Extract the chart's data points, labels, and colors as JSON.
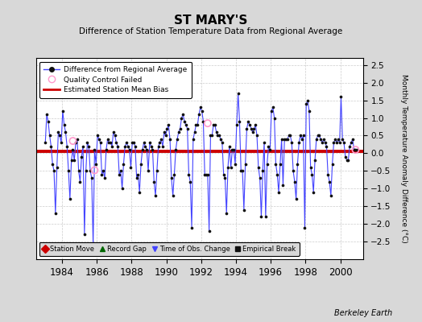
{
  "title": "ST MARY'S",
  "subtitle": "Difference of Station Temperature Data from Regional Average",
  "ylabel": "Monthly Temperature Anomaly Difference (°C)",
  "xlabel_years": [
    1984,
    1986,
    1988,
    1990,
    1992,
    1994,
    1996,
    1998,
    2000
  ],
  "xlim": [
    1982.5,
    2001.3
  ],
  "ylim": [
    -3.0,
    2.7
  ],
  "yticks": [
    -2.5,
    -2,
    -1.5,
    -1,
    -0.5,
    0,
    0.5,
    1,
    1.5,
    2,
    2.5
  ],
  "bias_line_y": 0.05,
  "bias_line_color": "#cc0000",
  "line_color": "#4444ff",
  "dot_color": "#111111",
  "qc_fail_color": "#ff99cc",
  "background_color": "#d8d8d8",
  "plot_bg_color": "#ffffff",
  "grid_color": "#cccccc",
  "footer_text": "Berkeley Earth",
  "legend1_labels": [
    "Difference from Regional Average",
    "Quality Control Failed",
    "Estimated Station Mean Bias"
  ],
  "legend2_labels": [
    "Station Move",
    "Record Gap",
    "Time of Obs. Change",
    "Empirical Break"
  ],
  "legend2_colors": [
    "#cc0000",
    "#006600",
    "#4444ff",
    "#111111"
  ],
  "legend2_markers": [
    "D",
    "^",
    "v",
    "s"
  ],
  "time_series": [
    1983.042,
    1983.125,
    1983.208,
    1983.292,
    1983.375,
    1983.458,
    1983.542,
    1983.625,
    1983.708,
    1983.792,
    1983.875,
    1983.958,
    1984.042,
    1984.125,
    1984.208,
    1984.292,
    1984.375,
    1984.458,
    1984.542,
    1984.625,
    1984.708,
    1984.792,
    1984.875,
    1984.958,
    1985.042,
    1985.125,
    1985.208,
    1985.292,
    1985.375,
    1985.458,
    1985.542,
    1985.625,
    1985.708,
    1985.792,
    1985.875,
    1985.958,
    1986.042,
    1986.125,
    1986.208,
    1986.292,
    1986.375,
    1986.458,
    1986.542,
    1986.625,
    1986.708,
    1986.792,
    1986.875,
    1986.958,
    1987.042,
    1987.125,
    1987.208,
    1987.292,
    1987.375,
    1987.458,
    1987.542,
    1987.625,
    1987.708,
    1987.792,
    1987.875,
    1987.958,
    1988.042,
    1988.125,
    1988.208,
    1988.292,
    1988.375,
    1988.458,
    1988.542,
    1988.625,
    1988.708,
    1988.792,
    1988.875,
    1988.958,
    1989.042,
    1989.125,
    1989.208,
    1989.292,
    1989.375,
    1989.458,
    1989.542,
    1989.625,
    1989.708,
    1989.792,
    1989.875,
    1989.958,
    1990.042,
    1990.125,
    1990.208,
    1990.292,
    1990.375,
    1990.458,
    1990.542,
    1990.625,
    1990.708,
    1990.792,
    1990.875,
    1990.958,
    1991.042,
    1991.125,
    1991.208,
    1991.292,
    1991.375,
    1991.458,
    1991.542,
    1991.625,
    1991.708,
    1991.792,
    1991.875,
    1991.958,
    1992.042,
    1992.125,
    1992.208,
    1992.292,
    1992.375,
    1992.458,
    1992.542,
    1992.625,
    1992.708,
    1992.792,
    1992.875,
    1992.958,
    1993.042,
    1993.125,
    1993.208,
    1993.292,
    1993.375,
    1993.458,
    1993.542,
    1993.625,
    1993.708,
    1993.792,
    1993.875,
    1993.958,
    1994.042,
    1994.125,
    1994.208,
    1994.292,
    1994.375,
    1994.458,
    1994.542,
    1994.625,
    1994.708,
    1994.792,
    1994.875,
    1994.958,
    1995.042,
    1995.125,
    1995.208,
    1995.292,
    1995.375,
    1995.458,
    1995.542,
    1995.625,
    1995.708,
    1995.792,
    1995.875,
    1995.958,
    1996.042,
    1996.125,
    1996.208,
    1996.292,
    1996.375,
    1996.458,
    1996.542,
    1996.625,
    1996.708,
    1996.792,
    1996.875,
    1996.958,
    1997.042,
    1997.125,
    1997.208,
    1997.292,
    1997.375,
    1997.458,
    1997.542,
    1997.625,
    1997.708,
    1997.792,
    1997.875,
    1997.958,
    1998.042,
    1998.125,
    1998.208,
    1998.292,
    1998.375,
    1998.458,
    1998.542,
    1998.625,
    1998.708,
    1998.792,
    1998.875,
    1998.958,
    1999.042,
    1999.125,
    1999.208,
    1999.292,
    1999.375,
    1999.458,
    1999.542,
    1999.625,
    1999.708,
    1999.792,
    1999.875,
    1999.958,
    2000.042,
    2000.125,
    2000.208,
    2000.292,
    2000.375,
    2000.458,
    2000.542,
    2000.625,
    2000.708,
    2000.792,
    2000.875,
    2000.958
  ],
  "values": [
    0.3,
    1.1,
    0.9,
    0.5,
    0.2,
    -0.3,
    -0.5,
    -1.7,
    -0.4,
    0.6,
    0.5,
    0.3,
    1.2,
    0.8,
    0.6,
    0.2,
    -0.5,
    -1.3,
    -0.2,
    0.1,
    -0.2,
    0.3,
    0.4,
    -0.5,
    -0.8,
    -0.1,
    0.2,
    -2.3,
    -0.5,
    0.3,
    0.2,
    -0.5,
    -0.7,
    -2.6,
    0.1,
    -0.3,
    0.5,
    0.4,
    0.3,
    -0.6,
    -0.5,
    -0.7,
    0.1,
    0.4,
    0.3,
    0.3,
    0.2,
    0.6,
    0.5,
    0.3,
    0.2,
    -0.6,
    -0.5,
    -1.0,
    -0.3,
    0.2,
    0.3,
    0.2,
    0.1,
    -0.4,
    0.3,
    0.3,
    0.2,
    -0.7,
    -0.6,
    -1.1,
    -0.3,
    0.1,
    0.3,
    0.2,
    0.1,
    -0.5,
    0.3,
    0.2,
    0.1,
    -0.8,
    -1.2,
    -0.5,
    0.2,
    0.3,
    0.4,
    0.2,
    0.6,
    0.5,
    0.7,
    0.8,
    0.4,
    -0.7,
    -1.2,
    -0.6,
    0.1,
    0.4,
    0.6,
    0.7,
    1.0,
    1.1,
    0.9,
    0.8,
    0.7,
    -0.6,
    -0.8,
    -2.1,
    0.4,
    0.6,
    0.8,
    0.8,
    1.1,
    1.3,
    1.2,
    0.9,
    -0.6,
    -0.6,
    -0.6,
    -2.2,
    0.5,
    0.5,
    0.8,
    0.8,
    0.6,
    0.5,
    0.5,
    0.4,
    0.3,
    -0.6,
    -0.7,
    -1.7,
    -0.4,
    0.2,
    -0.4,
    0.1,
    0.1,
    -0.3,
    0.8,
    1.7,
    0.9,
    -0.5,
    -0.5,
    -1.6,
    -0.3,
    0.7,
    0.9,
    0.8,
    0.7,
    0.6,
    0.7,
    0.8,
    0.5,
    -0.4,
    -0.7,
    -1.8,
    -0.5,
    0.3,
    -1.8,
    -0.3,
    0.2,
    0.1,
    1.2,
    1.3,
    1.0,
    -0.3,
    -0.6,
    -1.1,
    -0.3,
    0.4,
    -0.9,
    0.4,
    0.4,
    0.4,
    0.5,
    0.5,
    0.3,
    -0.5,
    -0.8,
    -1.3,
    -0.3,
    0.3,
    0.5,
    0.4,
    0.5,
    -2.1,
    1.4,
    1.5,
    1.2,
    -0.4,
    -0.6,
    -1.1,
    -0.2,
    0.4,
    0.5,
    0.5,
    0.4,
    0.3,
    0.4,
    0.3,
    0.2,
    -0.6,
    -0.8,
    -1.2,
    -0.3,
    0.3,
    0.4,
    0.3,
    0.4,
    0.3,
    1.6,
    0.4,
    0.3,
    -0.1,
    -0.2,
    -0.2,
    0.2,
    0.3,
    0.4,
    0.1,
    0.1,
    0.1
  ],
  "qc_fail_times": [
    1984.625,
    1985.875,
    1992.375,
    2000.875
  ],
  "qc_fail_values": [
    0.35,
    -0.48,
    0.85,
    0.1
  ]
}
